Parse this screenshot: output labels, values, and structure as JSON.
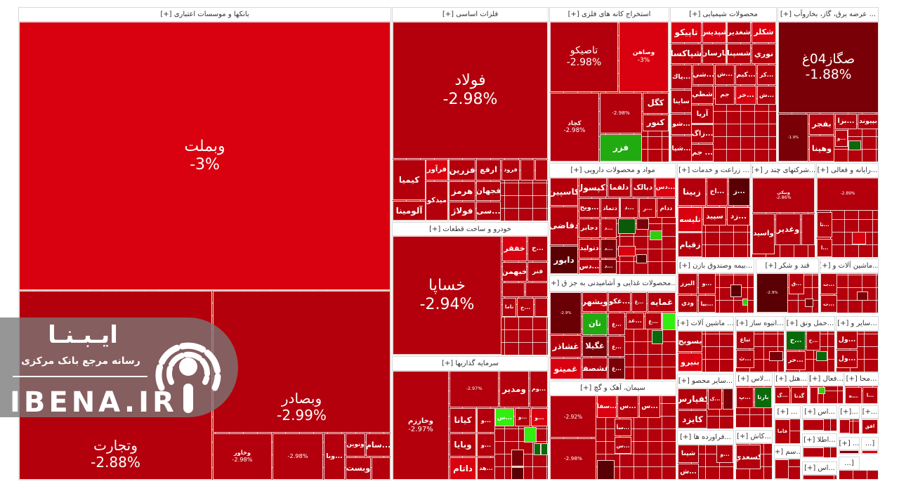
{
  "default_tile_color": "#b3000c",
  "colors": {
    "bright_red": "#d9000f",
    "dark_red": "#7a0008",
    "darkest_red": "#5a0005",
    "green": "#22aa11",
    "light_green": "#33ee11",
    "dark_green": "#0a6a0a"
  },
  "sectors": [
    {
      "title": "بانکها و موسسات اعتباری [+]",
      "tiles": [
        {
          "label": "وبملت",
          "pct": "-3%",
          "color": "#d9000f"
        },
        {
          "label": "وتجارت",
          "pct": "-2.88%"
        },
        {
          "label": "وبصادر",
          "pct": "-2.99%"
        },
        {
          "label": "وخاور",
          "pct": "-2.98%"
        },
        {
          "label": "",
          "pct": "-2.98%"
        },
        {
          "label": "...ویا"
        },
        {
          "label": "ونوین"
        },
        {
          "label": "...سام"
        },
        {
          "label": "وبست"
        },
        {
          "label": ""
        }
      ]
    },
    {
      "title": "فلزات اساسی [+]",
      "tiles": [
        {
          "label": "فولاد",
          "pct": "-2.98%"
        },
        {
          "label": "کیمیا"
        },
        {
          "label": "فرآور",
          "color": "#d9000f"
        },
        {
          "label": "فزرین"
        },
        {
          "label": "ارفع"
        },
        {
          "label": "فرود"
        },
        {
          "label": ""
        },
        {
          "label": ""
        },
        {
          "label": "هرمز"
        },
        {
          "label": "فجهان"
        },
        {
          "label": "آلومینا"
        },
        {
          "label": "میدکو"
        },
        {
          "label": "فولاژ"
        },
        {
          "label": "...سی"
        }
      ]
    },
    {
      "title": "خودرو و ساخت قطعات [+]",
      "tiles": [
        {
          "label": "خساپا",
          "pct": "-2.94%"
        },
        {
          "label": "خفقر",
          "color": "#d9000f"
        },
        {
          "label": "...خ"
        },
        {
          "label": "خبهمن"
        },
        {
          "label": "فنر"
        },
        {
          "label": ""
        },
        {
          "label": ""
        },
        {
          "label": "ناما"
        },
        {
          "label": "...خ"
        },
        {
          "label": ""
        }
      ]
    },
    {
      "title": "سرمایه گذاریها [+]",
      "tiles": [
        {
          "label": "وخارزم",
          "pct": "-2.97%"
        },
        {
          "label": "",
          "pct": "-2.97%"
        },
        {
          "label": "ومدیر"
        },
        {
          "label": "...وم"
        },
        {
          "label": "کیانا"
        },
        {
          "label": "وبایا"
        },
        {
          "label": "داتام",
          "color": "#d9000f"
        },
        {
          "label": "...و"
        },
        {
          "label": "...و"
        },
        {
          "label": "...هد"
        },
        {
          "label": "...س",
          "color": "#33ee11"
        },
        {
          "label": "...و"
        },
        {
          "label": "...و",
          "color": "#d9000f"
        },
        {
          "label": "",
          "color": "#33ee11"
        },
        {
          "label": "",
          "color": "#7a0008"
        },
        {
          "label": "",
          "color": "#0a6a0a"
        },
        {
          "label": "",
          "color": "#0a6a0a"
        },
        {
          "label": "",
          "color": "#5a0005"
        }
      ]
    },
    {
      "title": "استخراج کانه های فلزی [+]",
      "tiles": [
        {
          "label": "تاصیکو",
          "pct": "-2.98%"
        },
        {
          "label": "وصاهن",
          "pct": "-3%",
          "color": "#d9000f"
        },
        {
          "label": "کچاد",
          "pct": "-2.98%"
        },
        {
          "label": "",
          "pct": "-2.98%"
        },
        {
          "label": "فزر",
          "color": "#22aa11"
        },
        {
          "label": "کگل"
        },
        {
          "label": "کنور"
        }
      ]
    },
    {
      "title": "محصولات شیمیایی [+]",
      "tiles": [
        {
          "label": "شکلر",
          "color": "#d9000f"
        },
        {
          "label": "شغدیر"
        },
        {
          "label": "شپدیس",
          "color": "#d9000f"
        },
        {
          "label": "تاپیکو",
          "color": "#d9000f"
        },
        {
          "label": "نوري"
        },
        {
          "label": "شسپنا"
        },
        {
          "label": "پارسان"
        },
        {
          "label": "شپاکسا"
        },
        {
          "label": "...کر"
        },
        {
          "label": "...کیم"
        },
        {
          "label": "...ش"
        },
        {
          "label": "...شي"
        },
        {
          "label": "...پاك"
        },
        {
          "label": "...ش"
        },
        {
          "label": "...خر",
          "color": "#d9000f"
        },
        {
          "label": "جم"
        },
        {
          "label": "شطي"
        },
        {
          "label": "ساینا"
        },
        {
          "label": "آریا"
        },
        {
          "label": "...شو"
        },
        {
          "label": "...زاگ"
        },
        {
          "label": "...شپا"
        },
        {
          "label": "... جم"
        }
      ]
    },
    {
      "title": "... عرضه برق، گاز، بخاروآب [+]",
      "tiles": [
        {
          "label": "صگاز04غ",
          "pct": "-1.88%",
          "color": "#7a0008"
        },
        {
          "label": "",
          "pct": "-1.9%",
          "color": "#7a0008"
        },
        {
          "label": "بفجر"
        },
        {
          "label": "...بزا"
        },
        {
          "label": "بپیوند"
        },
        {
          "label": "وهپنا"
        },
        {
          "label": "...و"
        },
        {
          "label": "",
          "color": "#0a6a0a"
        }
      ]
    },
    {
      "title": "مواد و محصولات دارویی [+]",
      "tiles": [
        {
          "label": "کاسپین"
        },
        {
          "label": "دکپسول"
        },
        {
          "label": "دلقما"
        },
        {
          "label": "دبالک"
        },
        {
          "label": "...دس",
          "color": "#d9000f"
        },
        {
          "label": "...ویخ"
        },
        {
          "label": "دتماد"
        },
        {
          "label": "...د"
        },
        {
          "label": "...ر"
        },
        {
          "label": "ددام"
        },
        {
          "label": "دقاضی"
        },
        {
          "label": "دجابر"
        },
        {
          "label": "...د"
        },
        {
          "label": "دتولید"
        },
        {
          "label": "...د",
          "color": "#7a0008"
        },
        {
          "label": "...دس"
        },
        {
          "label": "...د",
          "color": "#7a0008"
        },
        {
          "label": "دابور",
          "color": "#5a0005"
        },
        {
          "label": "",
          "color": "#0a5a0a"
        },
        {
          "label": "",
          "color": "#7a0008"
        },
        {
          "label": "",
          "color": "#33cc11"
        },
        {
          "label": "",
          "color": "#d9000f"
        },
        {
          "label": "",
          "color": "#5a0005"
        }
      ]
    },
    {
      "title": "...محصولات غذایی و آشامیدنی به جز ق [+]",
      "tiles": [
        {
          "label": "",
          "pct": "-2.9%",
          "color": "#6a0006"
        },
        {
          "label": "ویشهر"
        },
        {
          "label": "...غکو"
        },
        {
          "label": "...غ"
        },
        {
          "label": "غمایه"
        },
        {
          "label": "نان",
          "color": "#22aa11"
        },
        {
          "label": "...غ"
        },
        {
          "label": "...غد"
        },
        {
          "label": "...غ"
        },
        {
          "label": "",
          "color": "#33ee11"
        },
        {
          "label": "غشاذر"
        },
        {
          "label": "غگیلا",
          "color": "#7a0008"
        },
        {
          "label": "...غ"
        },
        {
          "label": "غمینو",
          "color": "#d9000f"
        },
        {
          "label": "غشصفا"
        },
        {
          "label": "...غ",
          "color": "#7a0008"
        },
        {
          "label": "",
          "color": "#0a6a0a"
        }
      ]
    },
    {
      "title": "... زراعت و خدمات [+]",
      "tiles": [
        {
          "label": "زبینا"
        },
        {
          "label": "...اخ"
        },
        {
          "label": "...ز",
          "color": "#5a0005"
        },
        {
          "label": "تلیسه",
          "color": "#d9000f"
        },
        {
          "label": "سپید"
        },
        {
          "label": "...زد"
        },
        {
          "label": "زقیام"
        }
      ]
    },
    {
      "title": "...شرکتهای چند ر [+]",
      "tiles": [
        {
          "label": "ونیکی",
          "pct": "-2.86%"
        },
        {
          "label": "واسید"
        },
        {
          "label": "وغدیر"
        },
        {
          "label": ""
        }
      ]
    },
    {
      "title": "...رایانه و فعالی [+]",
      "tiles": [
        {
          "label": "",
          "pct": "-2.89%"
        },
        {
          "label": "...تا"
        },
        {
          "label": "...ا"
        },
        {
          "label": "",
          "color": "#d9000f"
        }
      ]
    },
    {
      "title": "...بیمه وصندوق بازن [+]",
      "tiles": [
        {
          "label": "البرز"
        },
        {
          "label": "...و"
        },
        {
          "label": "ودي"
        },
        {
          "label": "...بیا"
        },
        {
          "label": "",
          "color": "#5a0005"
        },
        {
          "label": "",
          "color": "#33cc11"
        }
      ]
    },
    {
      "title": "قند و شکر [+]",
      "tiles": [
        {
          "label": "",
          "pct": "-2.9%",
          "color": "#5a0005"
        },
        {
          "label": "...ق"
        },
        {
          "label": "",
          "color": "#7a0008"
        }
      ]
    },
    {
      "title": "...ماشین آلات و [+]",
      "tiles": [
        {
          "label": "...ت"
        },
        {
          "label": "...ت"
        },
        {
          "label": "",
          "color": "#7a0008"
        }
      ]
    },
    {
      "title": "... ماشین آلات [+]",
      "tiles": [
        {
          "label": "بسویج"
        },
        {
          "label": "بنیرو",
          "color": "#d9000f"
        }
      ]
    },
    {
      "title": "...انبوه ساز [+]",
      "tiles": [
        {
          "label": "تباغ"
        },
        {
          "label": "...ث"
        },
        {
          "label": "",
          "color": "#7a0008"
        }
      ]
    },
    {
      "title": "...حمل ونق [+]",
      "tiles": [
        {
          "label": "...ح",
          "color": "#0a6a0a"
        },
        {
          "label": "...ح"
        },
        {
          "label": "...حر"
        },
        {
          "label": "",
          "color": "#0a6a0a"
        }
      ]
    },
    {
      "title": "...سایر و [+]",
      "tiles": [
        {
          "label": "...ول"
        },
        {
          "label": "...ول"
        }
      ]
    },
    {
      "title": "سیمان، آهک و گچ [+]",
      "tiles": [
        {
          "label": "",
          "pct": "-2.92%"
        },
        {
          "label": "",
          "pct": "-2.98%"
        },
        {
          "label": "...سفا",
          "color": "#d9000f"
        },
        {
          "label": "...س"
        },
        {
          "label": "...س"
        },
        {
          "label": "...سأ"
        },
        {
          "label": "...س"
        },
        {
          "label": "",
          "color": "#5a0005"
        }
      ]
    },
    {
      "title": "...سایر محصو [+]",
      "tiles": [
        {
          "label": "کفپارس"
        },
        {
          "label": "...ک"
        },
        {
          "label": "کایزد"
        },
        {
          "label": "",
          "color": "#7a0008"
        }
      ]
    },
    {
      "title": "...فراورده ها [+]",
      "tiles": [
        {
          "label": "شپنا"
        },
        {
          "label": "...و"
        },
        {
          "label": "...ش"
        }
      ]
    },
    {
      "title": "...لاس [+]",
      "tiles": [
        {
          "label": "...پ"
        },
        {
          "label": "بارتا",
          "color": "#0a6a0a"
        }
      ]
    },
    {
      "title": "...کاش [+]",
      "tiles": [
        {
          "label": "کسعدي"
        }
      ]
    },
    {
      "title": "...هتل [+]",
      "tiles": [
        {
          "label": "...گ"
        },
        {
          "label": "گدنا"
        }
      ]
    },
    {
      "title": "...فعال [+]",
      "tiles": [
        {
          "label": ""
        },
        {
          "label": "",
          "color": "#33cc11"
        }
      ]
    },
    {
      "title": "...محا [+]",
      "tiles": [
        {
          "label": "...ه"
        },
        {
          "label": "...ا"
        }
      ]
    },
    {
      "title": "... [+]",
      "tiles": [
        {
          "label": "فاما"
        }
      ]
    },
    {
      "title": "...اس [+]",
      "tiles": [
        {
          "label": ""
        }
      ]
    },
    {
      "title": "...[+]",
      "tiles": [
        {
          "label": ""
        }
      ]
    },
    {
      "title": "...+]",
      "tiles": [
        {
          "label": "افق"
        }
      ]
    },
    {
      "title": "...اطلا [+]",
      "tiles": [
        {
          "label": ""
        }
      ]
    },
    {
      "title": "...سم [+]",
      "tiles": [
        {
          "label": ""
        }
      ]
    },
    {
      "title": "... [+]",
      "tiles": [
        {
          "label": "",
          "color": "#7a0008"
        }
      ]
    },
    {
      "title": "[...",
      "tiles": [
        {
          "label": "",
          "color": "#d9000f"
        }
      ]
    },
    {
      "title": "...اس [+]",
      "tiles": [
        {
          "label": ""
        }
      ]
    },
    {
      "title": "[...",
      "tiles": []
    }
  ],
  "watermark": {
    "brand_fa": "ایـبـنـا",
    "tagline": "رسانه مرجع بانک مرکزی",
    "domain": "IBENA.IR"
  }
}
